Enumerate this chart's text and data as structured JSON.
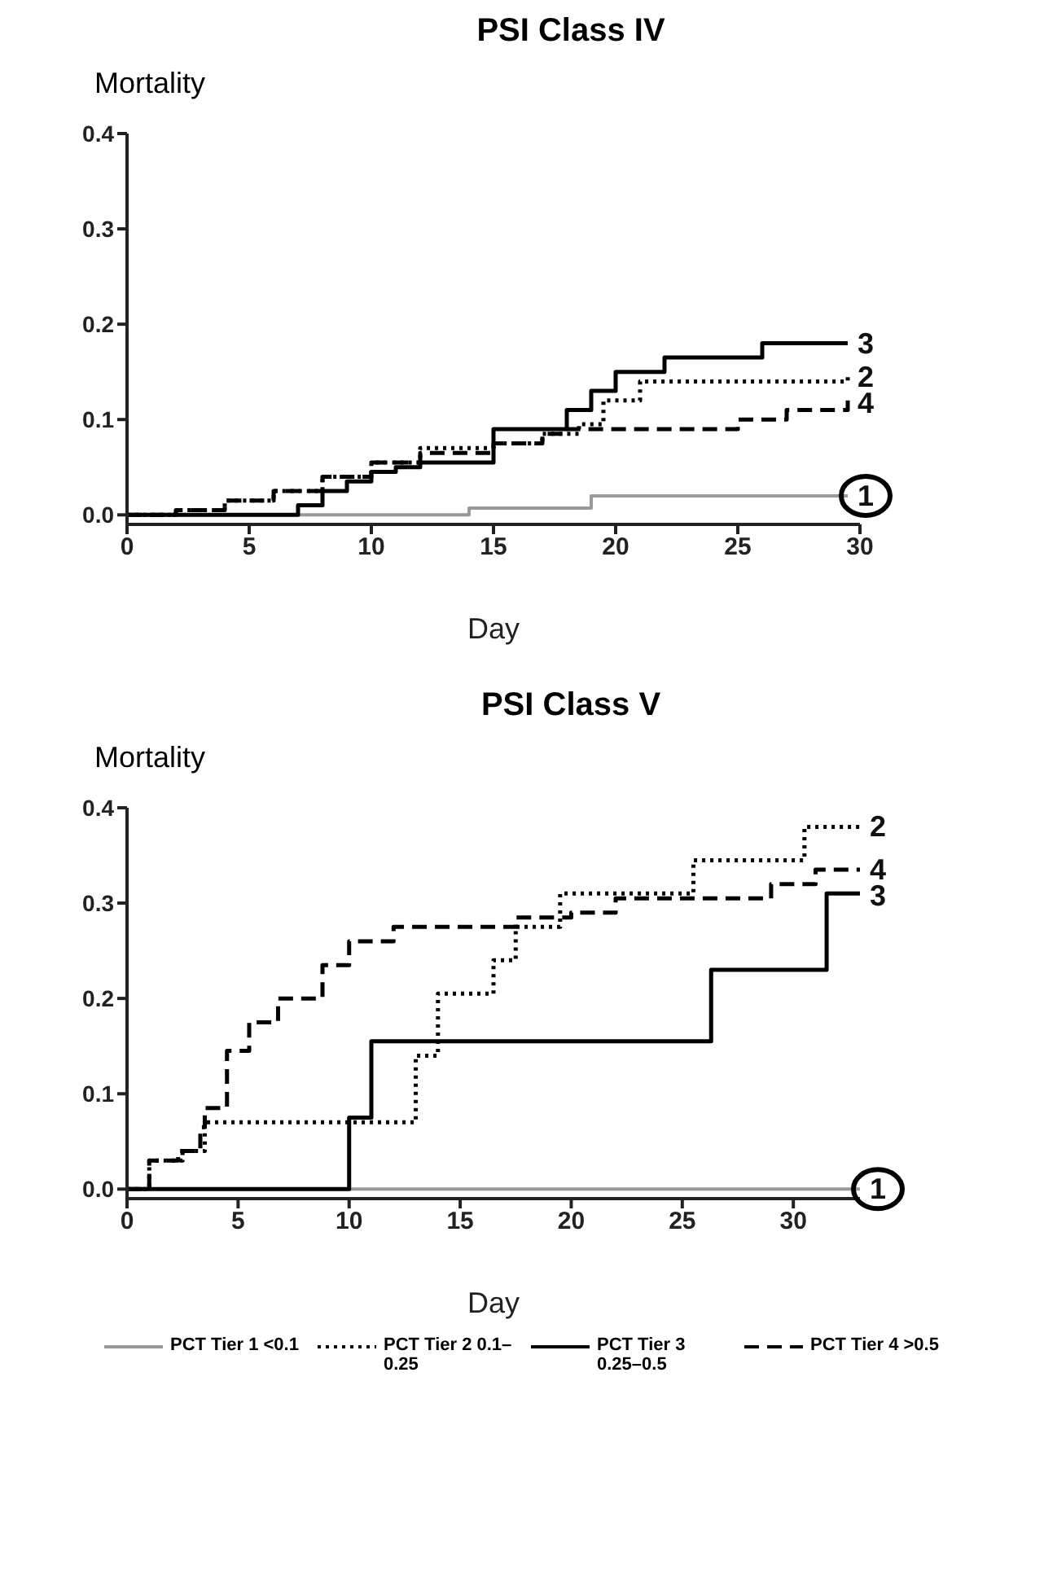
{
  "chart_data": [
    {
      "type": "step",
      "title": "PSI Class IV",
      "ylabel": "Mortality",
      "xlabel": "Day",
      "xlim": [
        0,
        30
      ],
      "xticks": [
        0,
        5,
        10,
        15,
        20,
        25,
        30
      ],
      "ylim": [
        -0.01,
        0.4
      ],
      "yticks": [
        {
          "value": 0,
          "label": "0.0"
        },
        {
          "value": 0.1,
          "label": "0.1"
        },
        {
          "value": 0.2,
          "label": "0.2"
        },
        {
          "value": 0.3,
          "label": "0.3"
        },
        {
          "value": 0.4,
          "label": "0.4"
        }
      ],
      "grid": false,
      "legend": false,
      "series": [
        {
          "color": "#999999",
          "line_style": "solid",
          "x": [
            0,
            14,
            19,
            29.5
          ],
          "values": [
            0,
            0.007,
            0.02,
            0.02
          ]
        },
        {
          "color": "#000000",
          "line_style": "dotted",
          "x": [
            0,
            2,
            4,
            6,
            8,
            10,
            12,
            15,
            17,
            18.5,
            19.5,
            21,
            29.5
          ],
          "values": [
            0,
            0.005,
            0.015,
            0.025,
            0.04,
            0.055,
            0.07,
            0.075,
            0.085,
            0.095,
            0.12,
            0.14,
            0.145
          ]
        },
        {
          "color": "#000000",
          "line_style": "solid",
          "x": [
            0,
            7,
            8,
            9,
            10,
            11,
            12,
            15,
            18,
            19,
            20,
            22,
            26,
            29.5
          ],
          "values": [
            0,
            0.01,
            0.025,
            0.035,
            0.045,
            0.05,
            0.055,
            0.09,
            0.11,
            0.13,
            0.15,
            0.165,
            0.18,
            0.18
          ]
        },
        {
          "color": "#000000",
          "line_style": "dashed",
          "x": [
            0,
            2,
            4,
            6,
            8,
            10,
            12,
            15,
            17,
            18,
            20,
            25,
            27,
            29.5
          ],
          "values": [
            0,
            0.005,
            0.015,
            0.025,
            0.04,
            0.055,
            0.065,
            0.075,
            0.085,
            0.09,
            0.09,
            0.1,
            0.11,
            0.12
          ]
        }
      ],
      "annotations": [
        "1",
        "2",
        "3",
        "4"
      ]
    },
    {
      "type": "step",
      "title": "PSI Class V",
      "ylabel": "Mortality",
      "xlabel": "Day",
      "xlim": [
        0,
        33
      ],
      "xticks": [
        0,
        5,
        10,
        15,
        20,
        25,
        30
      ],
      "ylim": [
        -0.01,
        0.4
      ],
      "yticks": [
        {
          "value": 0,
          "label": "0.0"
        },
        {
          "value": 0.1,
          "label": "0.1"
        },
        {
          "value": 0.2,
          "label": "0.2"
        },
        {
          "value": 0.3,
          "label": "0.3"
        },
        {
          "value": 0.4,
          "label": "0.4"
        }
      ],
      "grid": false,
      "legend": "bottom",
      "series": [
        {
          "name": "PCT Tier 1 <0.1",
          "color": "#999999",
          "line_style": "solid",
          "x": [
            0,
            33
          ],
          "values": [
            0,
            0
          ]
        },
        {
          "name": "PCT Tier 2 0.1–0.25",
          "color": "#000000",
          "line_style": "dotted",
          "x": [
            0,
            1,
            2.5,
            3.5,
            13,
            14,
            16.5,
            17.5,
            19.5,
            25.5,
            30.5,
            33
          ],
          "values": [
            0,
            0.03,
            0.04,
            0.07,
            0.14,
            0.205,
            0.24,
            0.275,
            0.31,
            0.345,
            0.38,
            0.38
          ]
        },
        {
          "name": "PCT Tier 3 0.25–0.5",
          "color": "#000000",
          "line_style": "solid",
          "x": [
            0,
            10,
            11,
            26.3,
            31.5,
            33
          ],
          "values": [
            0,
            0.075,
            0.155,
            0.23,
            0.31,
            0.31
          ]
        },
        {
          "name": "PCT Tier 4 >0.5",
          "color": "#000000",
          "line_style": "dashed",
          "x": [
            0,
            1,
            2.3,
            3.3,
            3.5,
            4.5,
            5.5,
            6.8,
            8.8,
            10,
            12,
            17.5,
            20,
            22,
            29,
            31,
            33
          ],
          "values": [
            0,
            0.03,
            0.04,
            0.065,
            0.085,
            0.145,
            0.175,
            0.2,
            0.235,
            0.26,
            0.275,
            0.285,
            0.29,
            0.305,
            0.32,
            0.335,
            0.335
          ]
        }
      ],
      "annotations": [
        "1",
        "2",
        "3",
        "4"
      ]
    }
  ]
}
